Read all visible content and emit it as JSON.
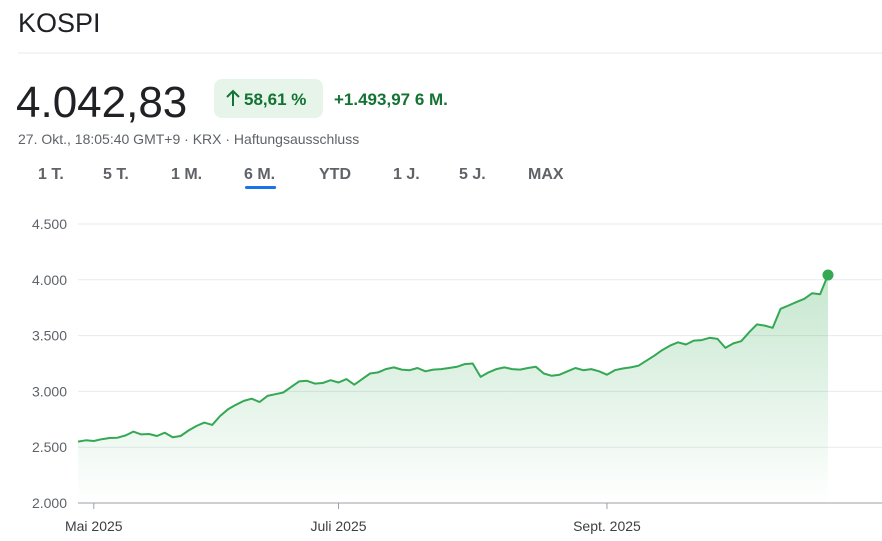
{
  "header": {
    "title": "KOSPI",
    "price": "4.042,83",
    "change_pct": "58,61 %",
    "change_abs": "+1.493,97 6 M.",
    "meta": "27. Okt., 18:05:40 GMT+9 · KRX · Haftungsausschluss"
  },
  "tabs": {
    "items": [
      "1 T.",
      "5 T.",
      "1 M.",
      "6 M.",
      "YTD",
      "1 J.",
      "5 J.",
      "MAX"
    ],
    "selected": 3
  },
  "chart_data": {
    "type": "area",
    "color": "#34a853",
    "grid": true,
    "categories": [
      null,
      null,
      "Mai 2025",
      null,
      null,
      null,
      null,
      null,
      null,
      null,
      null,
      null,
      null,
      null,
      null,
      null,
      null,
      null,
      null,
      null,
      null,
      null,
      null,
      null,
      null,
      null,
      null,
      null,
      null,
      null,
      null,
      null,
      null,
      "Juli 2025",
      null,
      null,
      null,
      null,
      null,
      null,
      null,
      null,
      null,
      null,
      null,
      null,
      null,
      null,
      null,
      null,
      null,
      null,
      null,
      null,
      null,
      null,
      null,
      null,
      null,
      null,
      null,
      null,
      null,
      null,
      null,
      null,
      null,
      "Sept. 2025",
      null,
      null,
      null,
      null,
      null,
      null,
      null,
      null,
      null,
      null,
      null,
      null,
      null,
      null,
      null,
      null,
      null,
      null,
      null,
      null,
      null,
      null,
      null,
      null,
      null,
      null,
      null,
      null
    ],
    "values": [
      2550,
      2562,
      2556,
      2572,
      2582,
      2585,
      2605,
      2640,
      2615,
      2618,
      2600,
      2630,
      2590,
      2600,
      2650,
      2690,
      2720,
      2700,
      2780,
      2840,
      2880,
      2915,
      2935,
      2905,
      2960,
      2975,
      2990,
      3040,
      3090,
      3095,
      3070,
      3075,
      3100,
      3080,
      3110,
      3060,
      3110,
      3160,
      3170,
      3200,
      3215,
      3195,
      3190,
      3210,
      3180,
      3195,
      3200,
      3210,
      3220,
      3245,
      3250,
      3130,
      3170,
      3200,
      3215,
      3200,
      3195,
      3210,
      3220,
      3160,
      3140,
      3150,
      3180,
      3210,
      3190,
      3200,
      3180,
      3150,
      3190,
      3205,
      3215,
      3230,
      3275,
      3320,
      3370,
      3410,
      3440,
      3420,
      3455,
      3460,
      3480,
      3470,
      3390,
      3430,
      3450,
      3530,
      3600,
      3590,
      3570,
      3740,
      3770,
      3800,
      3830,
      3880,
      3870,
      4042.83
    ],
    "ylim": [
      2000,
      4500
    ],
    "yticks": [
      {
        "value": 2000,
        "label": "2.000"
      },
      {
        "value": 2500,
        "label": "2.500"
      },
      {
        "value": 3000,
        "label": "3.000"
      },
      {
        "value": 3500,
        "label": "3.500"
      },
      {
        "value": 4000,
        "label": "4.000"
      },
      {
        "value": 4500,
        "label": "4.500"
      }
    ]
  }
}
